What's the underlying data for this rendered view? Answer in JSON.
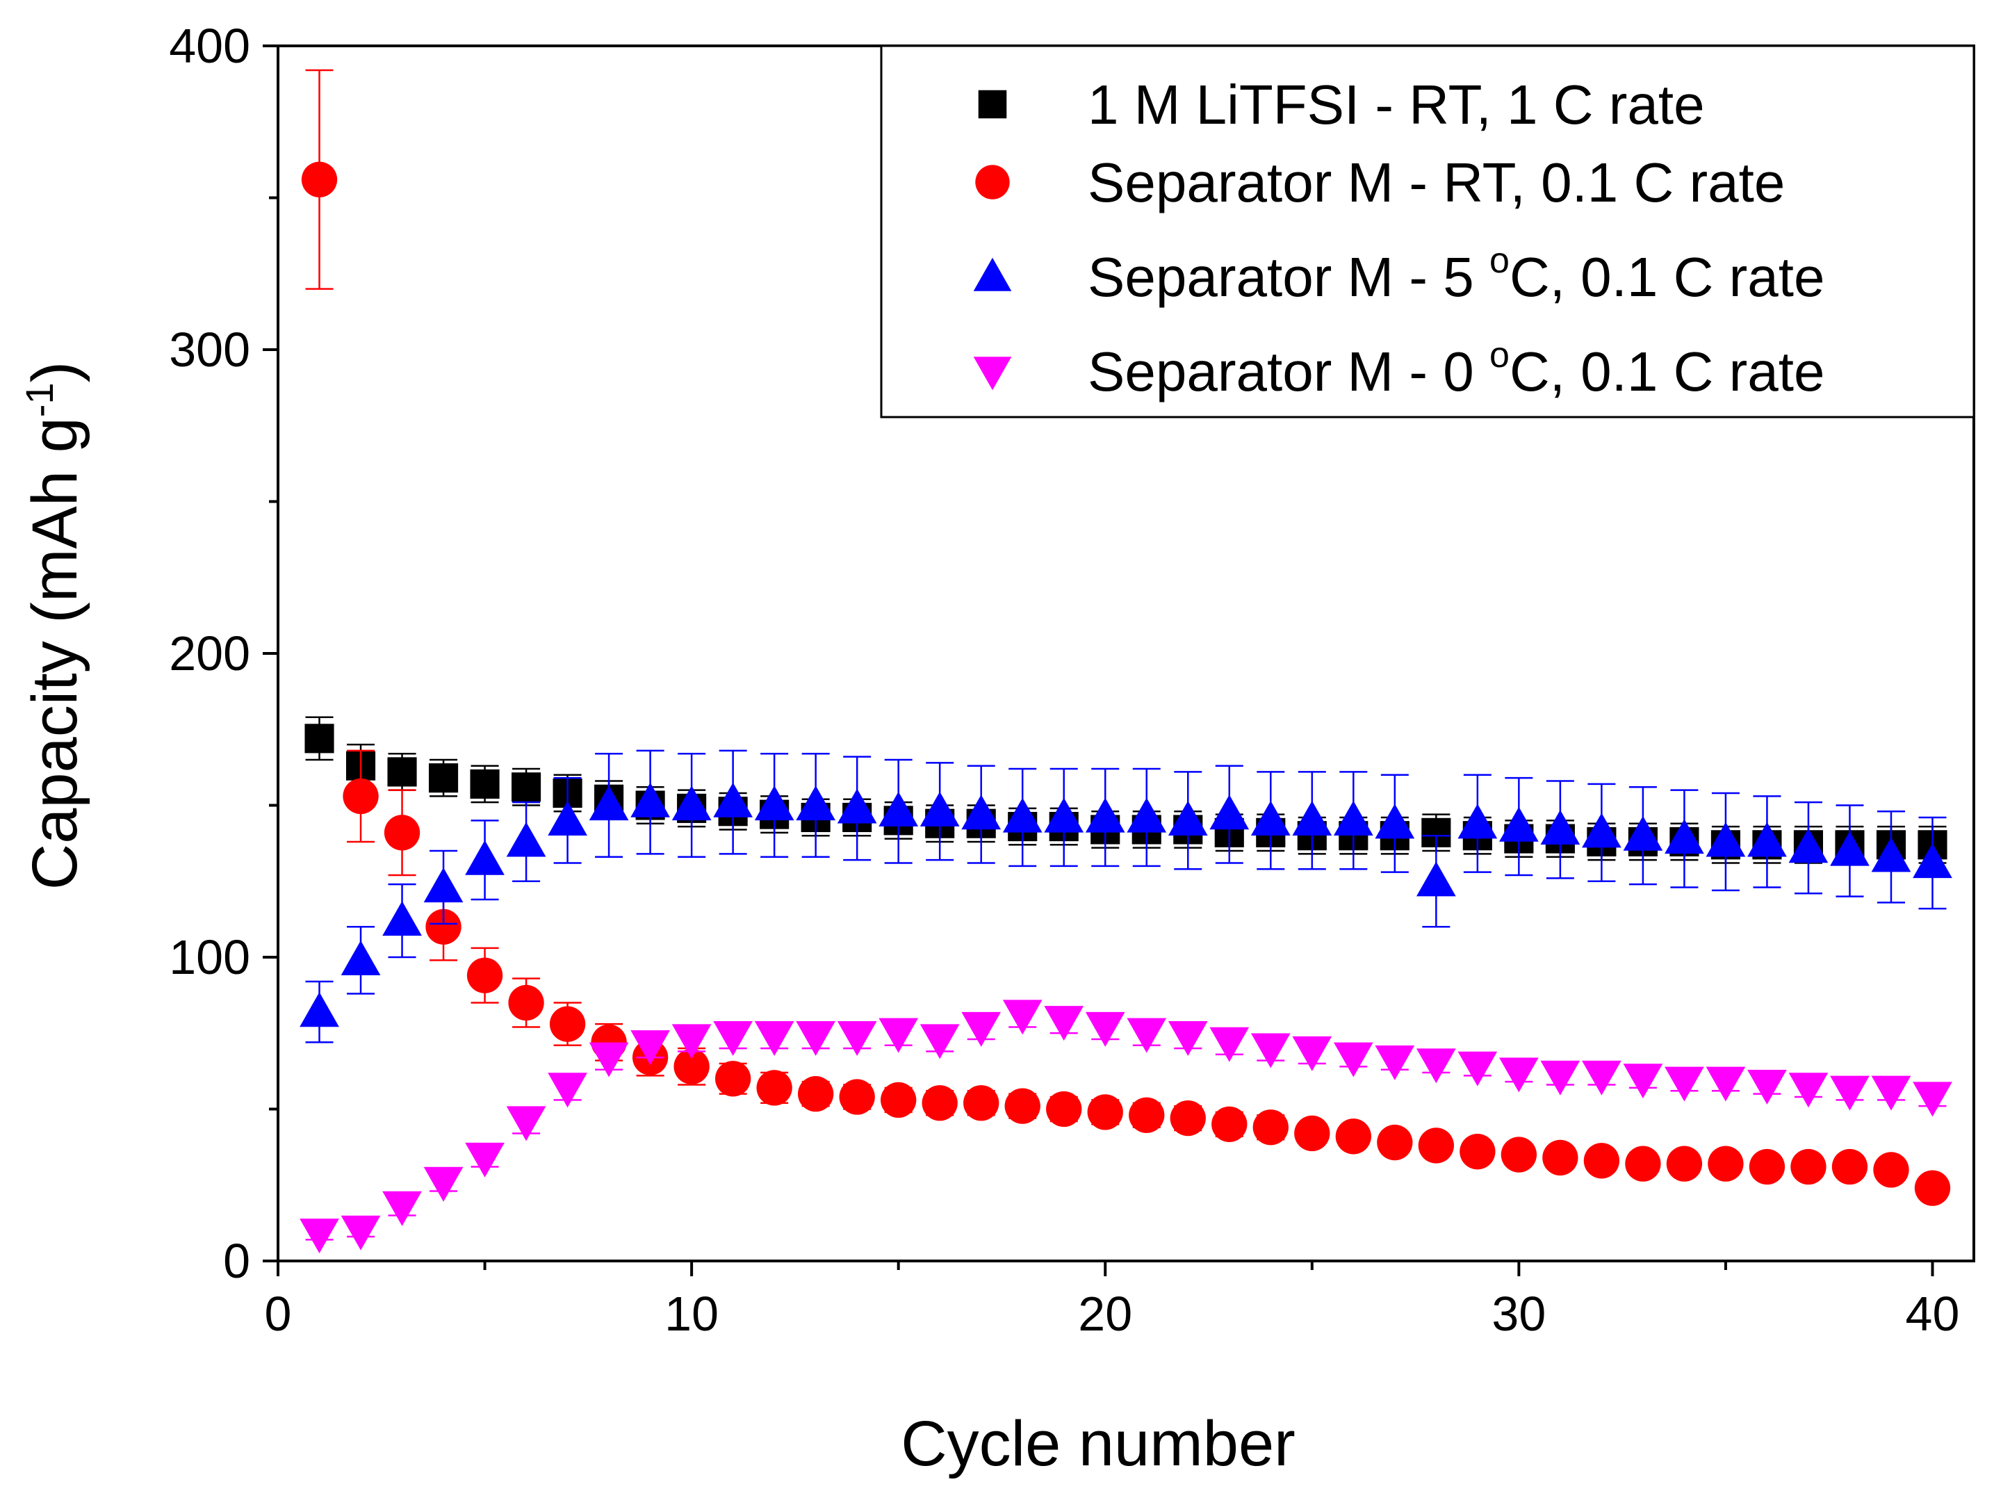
{
  "chart_data": {
    "type": "scatter",
    "title": "",
    "xlabel": "Cycle number",
    "ylabel": {
      "main": "Capacity (mAh g",
      "superscript": "-1",
      "close": ")"
    },
    "xlim": [
      0,
      41
    ],
    "ylim": [
      0,
      400
    ],
    "xticks": [
      0,
      10,
      20,
      30,
      40
    ],
    "yticks": [
      0,
      100,
      200,
      300,
      400
    ],
    "x_minor_step": 5,
    "y_minor_step": 50,
    "grid": false,
    "legend_position": "top-right",
    "series": [
      {
        "name": "1 M LiTFSI - RT, 1 C rate",
        "legend": {
          "pre": "1 M LiTFSI - RT, 1 C rate",
          "sup": "",
          "post": ""
        },
        "marker": "square",
        "color": "#000000",
        "x": [
          1,
          2,
          3,
          4,
          5,
          6,
          7,
          8,
          9,
          10,
          11,
          12,
          13,
          14,
          15,
          16,
          17,
          18,
          19,
          20,
          21,
          22,
          23,
          24,
          25,
          26,
          27,
          28,
          29,
          30,
          31,
          32,
          33,
          34,
          35,
          36,
          37,
          38,
          39,
          40
        ],
        "y": [
          172,
          163,
          161,
          159,
          157,
          156,
          154,
          152,
          150,
          149,
          148,
          147,
          146,
          146,
          145,
          144,
          144,
          143,
          143,
          142,
          142,
          142,
          141,
          141,
          140,
          140,
          140,
          141,
          140,
          139,
          139,
          138,
          138,
          138,
          137,
          137,
          137,
          137,
          137,
          137
        ],
        "err": [
          7,
          7,
          6,
          6,
          6,
          6,
          6,
          6,
          6,
          6,
          6,
          6,
          6,
          6,
          6,
          6,
          6,
          6,
          6,
          6,
          6,
          6,
          6,
          6,
          6,
          6,
          6,
          6,
          6,
          6,
          6,
          6,
          6,
          6,
          6,
          6,
          6,
          6,
          6,
          6
        ]
      },
      {
        "name": "Separator M - RT, 0.1 C rate",
        "legend": {
          "pre": "Separator M - RT, 0.1 C rate",
          "sup": "",
          "post": ""
        },
        "marker": "circle",
        "color": "#ff0000",
        "x": [
          1,
          2,
          3,
          4,
          5,
          6,
          7,
          8,
          9,
          10,
          11,
          12,
          13,
          14,
          15,
          16,
          17,
          18,
          19,
          20,
          21,
          22,
          23,
          24,
          25,
          26,
          27,
          28,
          29,
          30,
          31,
          32,
          33,
          34,
          35,
          36,
          37,
          38,
          39,
          40
        ],
        "y": [
          356,
          153,
          141,
          110,
          94,
          85,
          78,
          72,
          67,
          64,
          60,
          57,
          55,
          54,
          53,
          52,
          52,
          51,
          50,
          49,
          48,
          47,
          45,
          44,
          42,
          41,
          39,
          38,
          36,
          35,
          34,
          33,
          32,
          32,
          32,
          31,
          31,
          31,
          30,
          24
        ],
        "err": [
          36,
          15,
          14,
          11,
          9,
          8,
          7,
          6,
          6,
          6,
          5,
          5,
          4,
          4,
          4,
          4,
          4,
          4,
          4,
          4,
          4,
          4,
          4,
          4,
          3,
          3,
          3,
          3,
          3,
          3,
          3,
          3,
          3,
          3,
          3,
          3,
          3,
          3,
          3,
          3
        ]
      },
      {
        "name": "Separator M - 5 °C, 0.1 C rate",
        "legend": {
          "pre": "Separator M - 5 ",
          "sup": "o",
          "post": "C, 0.1 C rate"
        },
        "marker": "triangle-up",
        "color": "#0000ff",
        "x": [
          1,
          2,
          3,
          4,
          5,
          6,
          7,
          8,
          9,
          10,
          11,
          12,
          13,
          14,
          15,
          16,
          17,
          18,
          19,
          20,
          21,
          22,
          23,
          24,
          25,
          26,
          27,
          28,
          29,
          30,
          31,
          32,
          33,
          34,
          35,
          36,
          37,
          38,
          39,
          40
        ],
        "y": [
          82,
          99,
          112,
          123,
          132,
          138,
          145,
          150,
          151,
          150,
          151,
          150,
          150,
          149,
          148,
          148,
          147,
          146,
          146,
          146,
          146,
          145,
          147,
          145,
          145,
          145,
          144,
          125,
          144,
          143,
          142,
          141,
          140,
          139,
          138,
          138,
          136,
          135,
          133,
          131
        ],
        "err": [
          10,
          11,
          12,
          12,
          13,
          13,
          14,
          17,
          17,
          17,
          17,
          17,
          17,
          17,
          17,
          16,
          16,
          16,
          16,
          16,
          16,
          16,
          16,
          16,
          16,
          16,
          16,
          15,
          16,
          16,
          16,
          16,
          16,
          16,
          16,
          15,
          15,
          15,
          15,
          15
        ]
      },
      {
        "name": "Separator M - 0 °C, 0.1 C rate",
        "legend": {
          "pre": "Separator M - 0 ",
          "sup": "o",
          "post": "C, 0.1 C rate"
        },
        "marker": "triangle-down",
        "color": "#ff00ff",
        "x": [
          1,
          2,
          3,
          4,
          5,
          6,
          7,
          8,
          9,
          10,
          11,
          12,
          13,
          14,
          15,
          16,
          17,
          18,
          19,
          20,
          21,
          22,
          23,
          24,
          25,
          26,
          27,
          28,
          29,
          30,
          31,
          32,
          33,
          34,
          35,
          36,
          37,
          38,
          39,
          40
        ],
        "y": [
          9,
          10,
          18,
          26,
          34,
          46,
          57,
          67,
          71,
          73,
          74,
          74,
          74,
          74,
          75,
          73,
          77,
          81,
          79,
          77,
          75,
          74,
          72,
          70,
          69,
          67,
          66,
          65,
          64,
          62,
          61,
          61,
          60,
          59,
          59,
          58,
          57,
          56,
          56,
          54
        ],
        "err": [
          2,
          2,
          3,
          3,
          3,
          4,
          4,
          4,
          4,
          4,
          4,
          4,
          4,
          4,
          4,
          4,
          4,
          4,
          4,
          4,
          4,
          4,
          4,
          4,
          4,
          3,
          3,
          3,
          3,
          3,
          3,
          3,
          3,
          3,
          3,
          3,
          3,
          3,
          3,
          3
        ]
      }
    ]
  }
}
